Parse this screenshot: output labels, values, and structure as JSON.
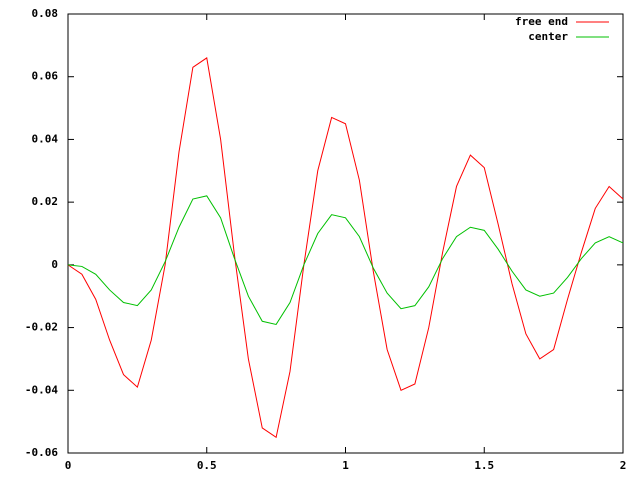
{
  "chart_data": {
    "type": "line",
    "x": [
      0,
      0.05,
      0.1,
      0.15,
      0.2,
      0.25,
      0.3,
      0.35,
      0.4,
      0.45,
      0.5,
      0.55,
      0.6,
      0.65,
      0.7,
      0.75,
      0.8,
      0.85,
      0.9,
      0.95,
      1.0,
      1.05,
      1.1,
      1.15,
      1.2,
      1.25,
      1.3,
      1.35,
      1.4,
      1.45,
      1.5,
      1.55,
      1.6,
      1.65,
      1.7,
      1.75,
      1.8,
      1.85,
      1.9,
      1.95,
      2.0
    ],
    "series": [
      {
        "name": "free end",
        "color": "#ff0000",
        "values": [
          0,
          -0.003,
          -0.011,
          -0.024,
          -0.035,
          -0.039,
          -0.024,
          0.0,
          0.036,
          0.063,
          0.066,
          0.04,
          0.003,
          -0.03,
          -0.052,
          -0.055,
          -0.034,
          0.0,
          0.03,
          0.047,
          0.045,
          0.027,
          -0.002,
          -0.027,
          -0.04,
          -0.038,
          -0.02,
          0.004,
          0.025,
          0.035,
          0.031,
          0.013,
          -0.006,
          -0.022,
          -0.03,
          -0.027,
          -0.011,
          0.004,
          0.018,
          0.025,
          0.021
        ]
      },
      {
        "name": "center",
        "color": "#00c000",
        "values": [
          0,
          -0.0005,
          -0.003,
          -0.008,
          -0.012,
          -0.013,
          -0.008,
          0.001,
          0.012,
          0.021,
          0.022,
          0.015,
          0.002,
          -0.01,
          -0.018,
          -0.019,
          -0.012,
          0.0,
          0.01,
          0.016,
          0.015,
          0.009,
          -0.001,
          -0.009,
          -0.014,
          -0.013,
          -0.007,
          0.002,
          0.009,
          0.012,
          0.011,
          0.005,
          -0.002,
          -0.008,
          -0.01,
          -0.009,
          -0.004,
          0.002,
          0.007,
          0.009,
          0.007
        ]
      }
    ],
    "xlim": [
      0,
      2
    ],
    "xticks": [
      0,
      0.5,
      1,
      1.5,
      2
    ],
    "ylim": [
      -0.06,
      0.08
    ],
    "yticks": [
      -0.06,
      -0.04,
      -0.02,
      0,
      0.02,
      0.04,
      0.06,
      0.08
    ],
    "legend": "top-right"
  }
}
